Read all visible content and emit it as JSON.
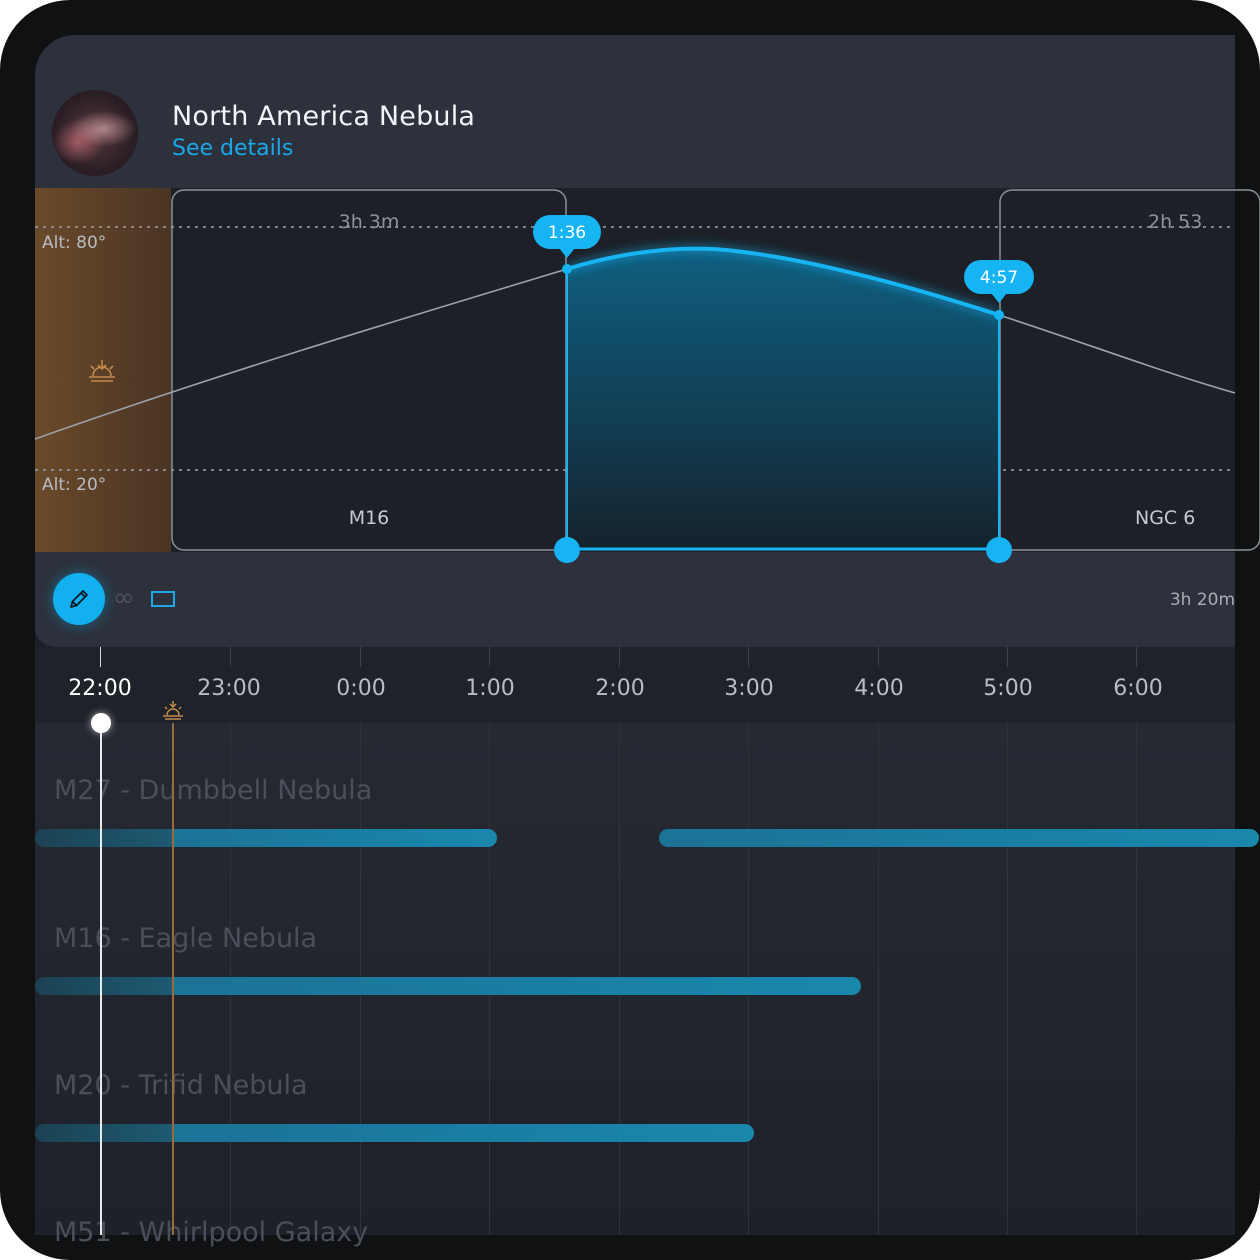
{
  "target": {
    "name": "North America Nebula",
    "details_link": "See details"
  },
  "altitude_chart": {
    "alt_high_label": "Alt: 80°",
    "alt_low_label": "Alt: 20°",
    "segments": [
      {
        "name": "M16",
        "duration": "3h 3m"
      },
      {
        "name": "NGC 6",
        "duration": "2h 53"
      }
    ],
    "selection": {
      "start": "1:36",
      "end": "4:57",
      "total": "3h 20m"
    }
  },
  "toolbar": {
    "edit_icon": "pencil-icon",
    "loop_icon": "infinity-icon",
    "frame_icon": "rectangle-icon"
  },
  "timeline": {
    "hours": [
      "22:00",
      "23:00",
      "0:00",
      "1:00",
      "2:00",
      "3:00",
      "4:00",
      "5:00",
      "6:00"
    ],
    "current": "22:00",
    "twilight_icon": "sunset-icon"
  },
  "targets": [
    {
      "label": "M27 - Dumbbell Nebula"
    },
    {
      "label": "M16 - Eagle Nebula"
    },
    {
      "label": "M20 - Trifid Nebula"
    },
    {
      "label": "M51 - Whirlpool Galaxy"
    }
  ],
  "colors": {
    "accent": "#12b0ee",
    "card": "#2c313b",
    "twilight": "#9b6a3c"
  }
}
